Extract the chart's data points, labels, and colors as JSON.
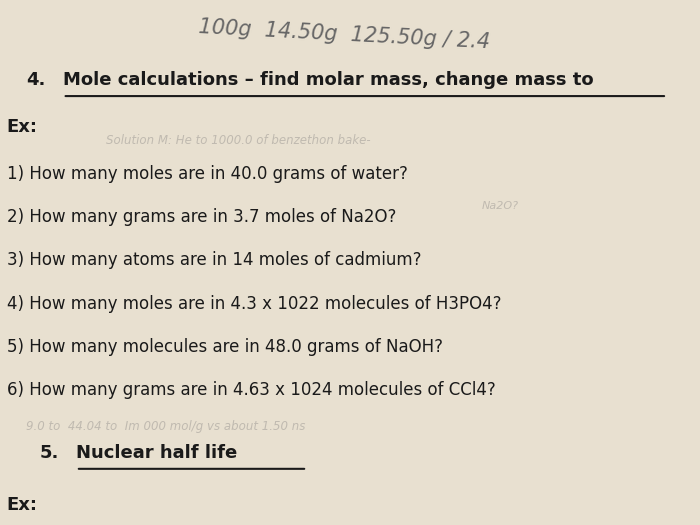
{
  "background_color": "#e8e0d0",
  "handwriting_top": "100g  14.50g  125.50g / 2.4",
  "section4_label": "4.",
  "section4_title": "Mole calculations – find molar mass, change mass to",
  "ex_label": "Ex:",
  "questions": [
    "1) How many moles are in 40.0 grams of water?",
    "2) How many grams are in 3.7 moles of Na2O?",
    "3) How many atoms are in 14 moles of cadmium?",
    "4) How many moles are in 4.3 x 1022 molecules of H3PO4?",
    "5) How many molecules are in 48.0 grams of NaOH?",
    "6) How many grams are in 4.63 x 1024 molecules of CCl4?"
  ],
  "section5_label": "5.",
  "section5_title": "Nuclear half life",
  "ex2_label": "Ex:",
  "faded_text_mid": "Solution M: He to 1000.0 of benzethon bake-",
  "faded_text_bottom": "9.0 to  44.04 to  Im 000 mol/g vs about 1.50 ns",
  "text_color": "#1a1a1a",
  "faded_color": "#c0bab0",
  "title_fontsize": 13,
  "body_fontsize": 12,
  "handwriting_color": "#666666"
}
